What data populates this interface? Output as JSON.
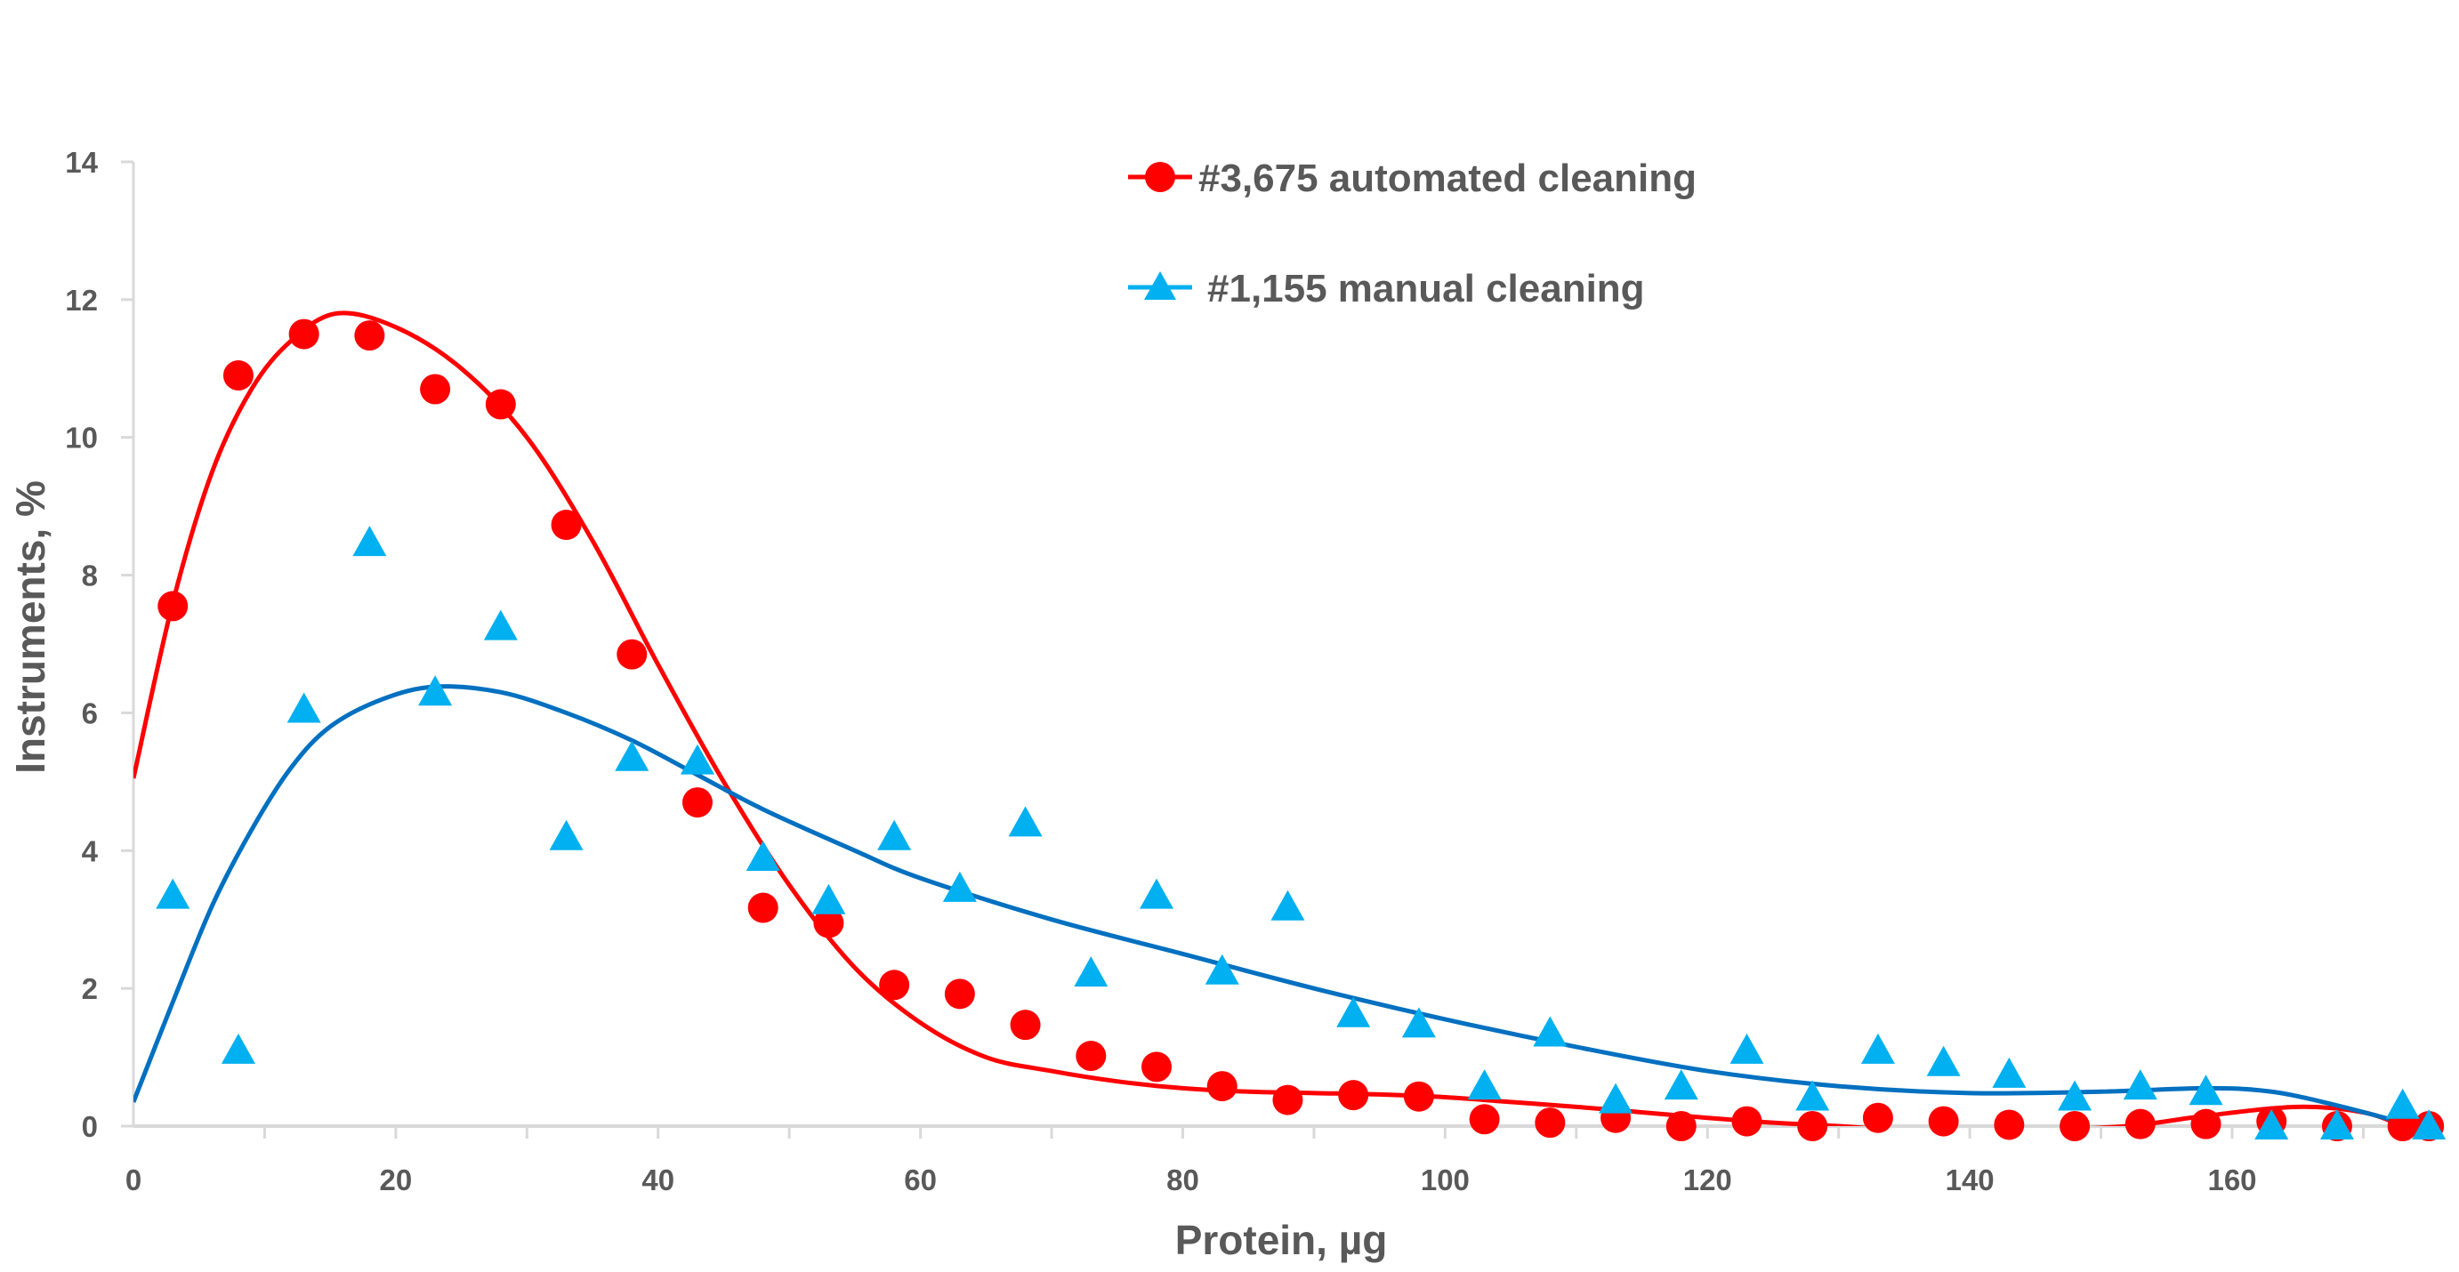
{
  "chart_data": {
    "type": "scatter",
    "title": "",
    "xlabel": "Protein, µg",
    "ylabel": "Instruments, %",
    "xlim": [
      0,
      175
    ],
    "ylim": [
      0,
      14
    ],
    "xticks": [
      "0",
      "20",
      "40",
      "60",
      "80",
      "100",
      "120",
      "140",
      "160"
    ],
    "yticks": [
      "0",
      "2",
      "4",
      "6",
      "8",
      "10",
      "12",
      "14"
    ],
    "grid": false,
    "legend_position": "top-right",
    "series": [
      {
        "name": "#3,675 automated cleaning",
        "marker": "circle",
        "color": "#ff0000",
        "x": [
          3,
          8,
          13,
          18,
          23,
          28,
          33,
          38,
          43,
          48,
          53,
          58,
          63,
          68,
          73,
          78,
          83,
          88,
          93,
          98,
          103,
          108,
          113,
          118,
          123,
          128,
          133,
          138,
          143,
          148,
          153,
          158,
          163,
          168,
          173,
          175
        ],
        "y": [
          7.55,
          10.9,
          11.5,
          11.48,
          10.7,
          10.48,
          8.73,
          6.85,
          4.7,
          3.17,
          2.95,
          2.05,
          1.92,
          1.47,
          1.02,
          0.86,
          0.58,
          0.38,
          0.45,
          0.43,
          0.1,
          0.05,
          0.12,
          0.0,
          0.07,
          0.0,
          0.12,
          0.07,
          0.02,
          0.0,
          0.03,
          0.03,
          0.07,
          0.0,
          0.0,
          0.0
        ],
        "trend": {
          "color": "#ff0000",
          "x": [
            0,
            3,
            6,
            9,
            12,
            15.5,
            20,
            25,
            30,
            35,
            40,
            45,
            50,
            55,
            60,
            65,
            70,
            75,
            80,
            85,
            90,
            95,
            100,
            105,
            110,
            115,
            120,
            125,
            130,
            135,
            145,
            152,
            158,
            165,
            170,
            173
          ],
          "y": [
            5.05,
            7.6,
            9.5,
            10.7,
            11.4,
            11.8,
            11.6,
            11.0,
            10.0,
            8.5,
            6.7,
            5.0,
            3.5,
            2.3,
            1.5,
            1.0,
            0.8,
            0.65,
            0.55,
            0.5,
            0.48,
            0.46,
            0.42,
            0.35,
            0.28,
            0.2,
            0.12,
            0.05,
            0.0,
            -0.05,
            -0.05,
            0.0,
            0.15,
            0.28,
            0.2,
            0.0
          ]
        }
      },
      {
        "name": "#1,155 manual cleaning",
        "marker": "triangle",
        "color": "#00b0f0",
        "x": [
          3,
          8,
          13,
          18,
          23,
          28,
          33,
          38,
          43,
          48,
          53,
          58,
          63,
          68,
          73,
          78,
          83,
          88,
          93,
          98,
          103,
          108,
          113,
          118,
          123,
          128,
          133,
          138,
          143,
          148,
          153,
          158,
          163,
          168,
          173,
          175
        ],
        "y": [
          3.35,
          1.1,
          6.05,
          8.47,
          6.3,
          7.25,
          4.2,
          5.35,
          5.3,
          3.9,
          3.27,
          4.2,
          3.45,
          4.4,
          2.22,
          3.35,
          2.25,
          3.18,
          1.63,
          1.48,
          0.58,
          1.35,
          0.38,
          0.58,
          1.1,
          0.42,
          1.1,
          0.92,
          0.75,
          0.42,
          0.58,
          0.5,
          0.0,
          0.0,
          0.3,
          0.0
        ],
        "trend": {
          "color": "#0070c0",
          "x": [
            0,
            3,
            6,
            9,
            12,
            15,
            19,
            23,
            28,
            33,
            38,
            43,
            48,
            55,
            60,
            70,
            80,
            90,
            100,
            110,
            120,
            130,
            140,
            150,
            158,
            163,
            168,
            173
          ],
          "y": [
            0.35,
            1.8,
            3.2,
            4.3,
            5.2,
            5.8,
            6.2,
            6.38,
            6.3,
            6.0,
            5.6,
            5.1,
            4.6,
            4.0,
            3.6,
            3.0,
            2.5,
            2.0,
            1.55,
            1.15,
            0.8,
            0.58,
            0.48,
            0.5,
            0.55,
            0.5,
            0.3,
            0.05
          ]
        }
      }
    ]
  }
}
